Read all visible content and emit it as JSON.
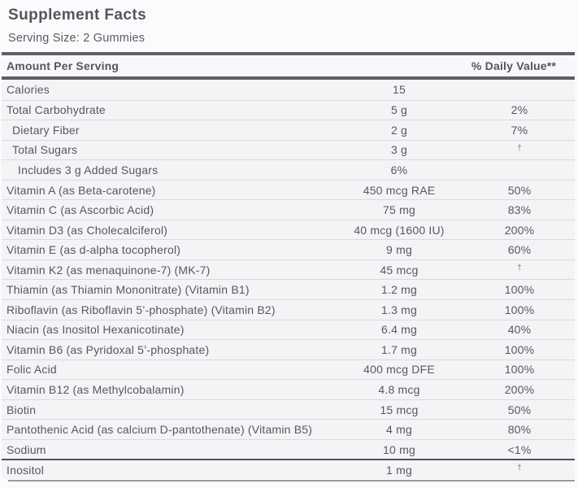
{
  "label": {
    "title": "Supplement Facts",
    "serving_size": "Serving Size: 2 Gummies",
    "header": {
      "amount_header": "Amount Per Serving",
      "daily_value_header": "% Daily Value**"
    },
    "rows": [
      {
        "name": "Calories",
        "amount": "15",
        "dv": "",
        "indent": 0
      },
      {
        "name": "Total Carbohydrate",
        "amount": "5 g",
        "dv": "2%",
        "indent": 0
      },
      {
        "name": "Dietary Fiber",
        "amount": "2 g",
        "dv": "7%",
        "indent": 1
      },
      {
        "name": "Total Sugars",
        "amount": "3 g",
        "dv": "†",
        "indent": 1
      },
      {
        "name": "Includes 3 g Added Sugars",
        "amount": "6%",
        "dv": "",
        "indent": 2
      },
      {
        "name": "Vitamin A (as Beta-carotene)",
        "amount": "450 mcg RAE",
        "dv": "50%",
        "indent": 0
      },
      {
        "name": "Vitamin C (as Ascorbic Acid)",
        "amount": "75 mg",
        "dv": "83%",
        "indent": 0
      },
      {
        "name": "Vitamin D3 (as Cholecalciferol)",
        "amount": "40 mcg (1600 IU)",
        "dv": "200%",
        "indent": 0
      },
      {
        "name": "Vitamin E (as d-alpha tocopherol)",
        "amount": "9 mg",
        "dv": "60%",
        "indent": 0
      },
      {
        "name": "Vitamin K2 (as menaquinone-7) (MK-7)",
        "amount": "45 mcg",
        "dv": "†",
        "indent": 0
      },
      {
        "name": "Thiamin (as Thiamin Mononitrate) (Vitamin B1)",
        "amount": "1.2 mg",
        "dv": "100%",
        "indent": 0
      },
      {
        "name": "Riboflavin (as Riboflavin 5’-phosphate) (Vitamin B2)",
        "amount": "1.3 mg",
        "dv": "100%",
        "indent": 0
      },
      {
        "name": "Niacin (as Inositol Hexanicotinate)",
        "amount": "6.4 mg",
        "dv": "40%",
        "indent": 0
      },
      {
        "name": "Vitamin B6 (as Pyridoxal 5’-phosphate)",
        "amount": "1.7 mg",
        "dv": "100%",
        "indent": 0
      },
      {
        "name": "Folic Acid",
        "amount": "400 mcg DFE",
        "dv": "100%",
        "indent": 0
      },
      {
        "name": "Vitamin B12 (as Methylcobalamin)",
        "amount": "4.8 mcg",
        "dv": "200%",
        "indent": 0
      },
      {
        "name": "Biotin",
        "amount": "15 mcg",
        "dv": "50%",
        "indent": 0
      },
      {
        "name": "Pantothenic Acid (as calcium D-pantothenate) (Vitamin B5)",
        "amount": "4 mg",
        "dv": "80%",
        "indent": 0
      },
      {
        "name": "Sodium",
        "amount": "10 mg",
        "dv": "<1%",
        "indent": 0
      },
      {
        "name": "Inositol",
        "amount": "1 mg",
        "dv": "†",
        "indent": 0,
        "section_break": true
      }
    ],
    "colors": {
      "text": "#54565a",
      "thick_rule": "#5e6064",
      "section_rule": "#4f5155",
      "row_separator": "#d9dadc",
      "row_background": "#f3f4f6",
      "bottom_rule": "#98999c"
    }
  }
}
